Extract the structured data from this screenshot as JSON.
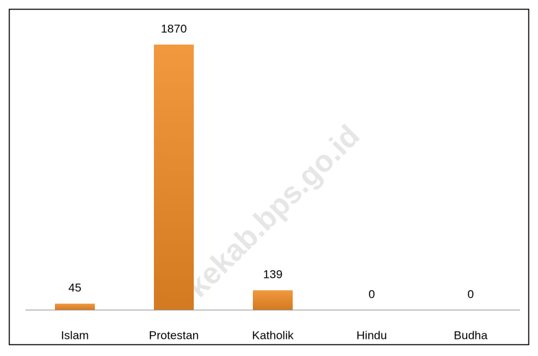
{
  "chart_data": {
    "type": "bar",
    "categories": [
      "Islam",
      "Protestan",
      "Katholik",
      "Hindu",
      "Budha"
    ],
    "values": [
      45,
      1870,
      139,
      0,
      0
    ],
    "color": "#f08a24",
    "watermark": "kekab.bps.go.id"
  }
}
